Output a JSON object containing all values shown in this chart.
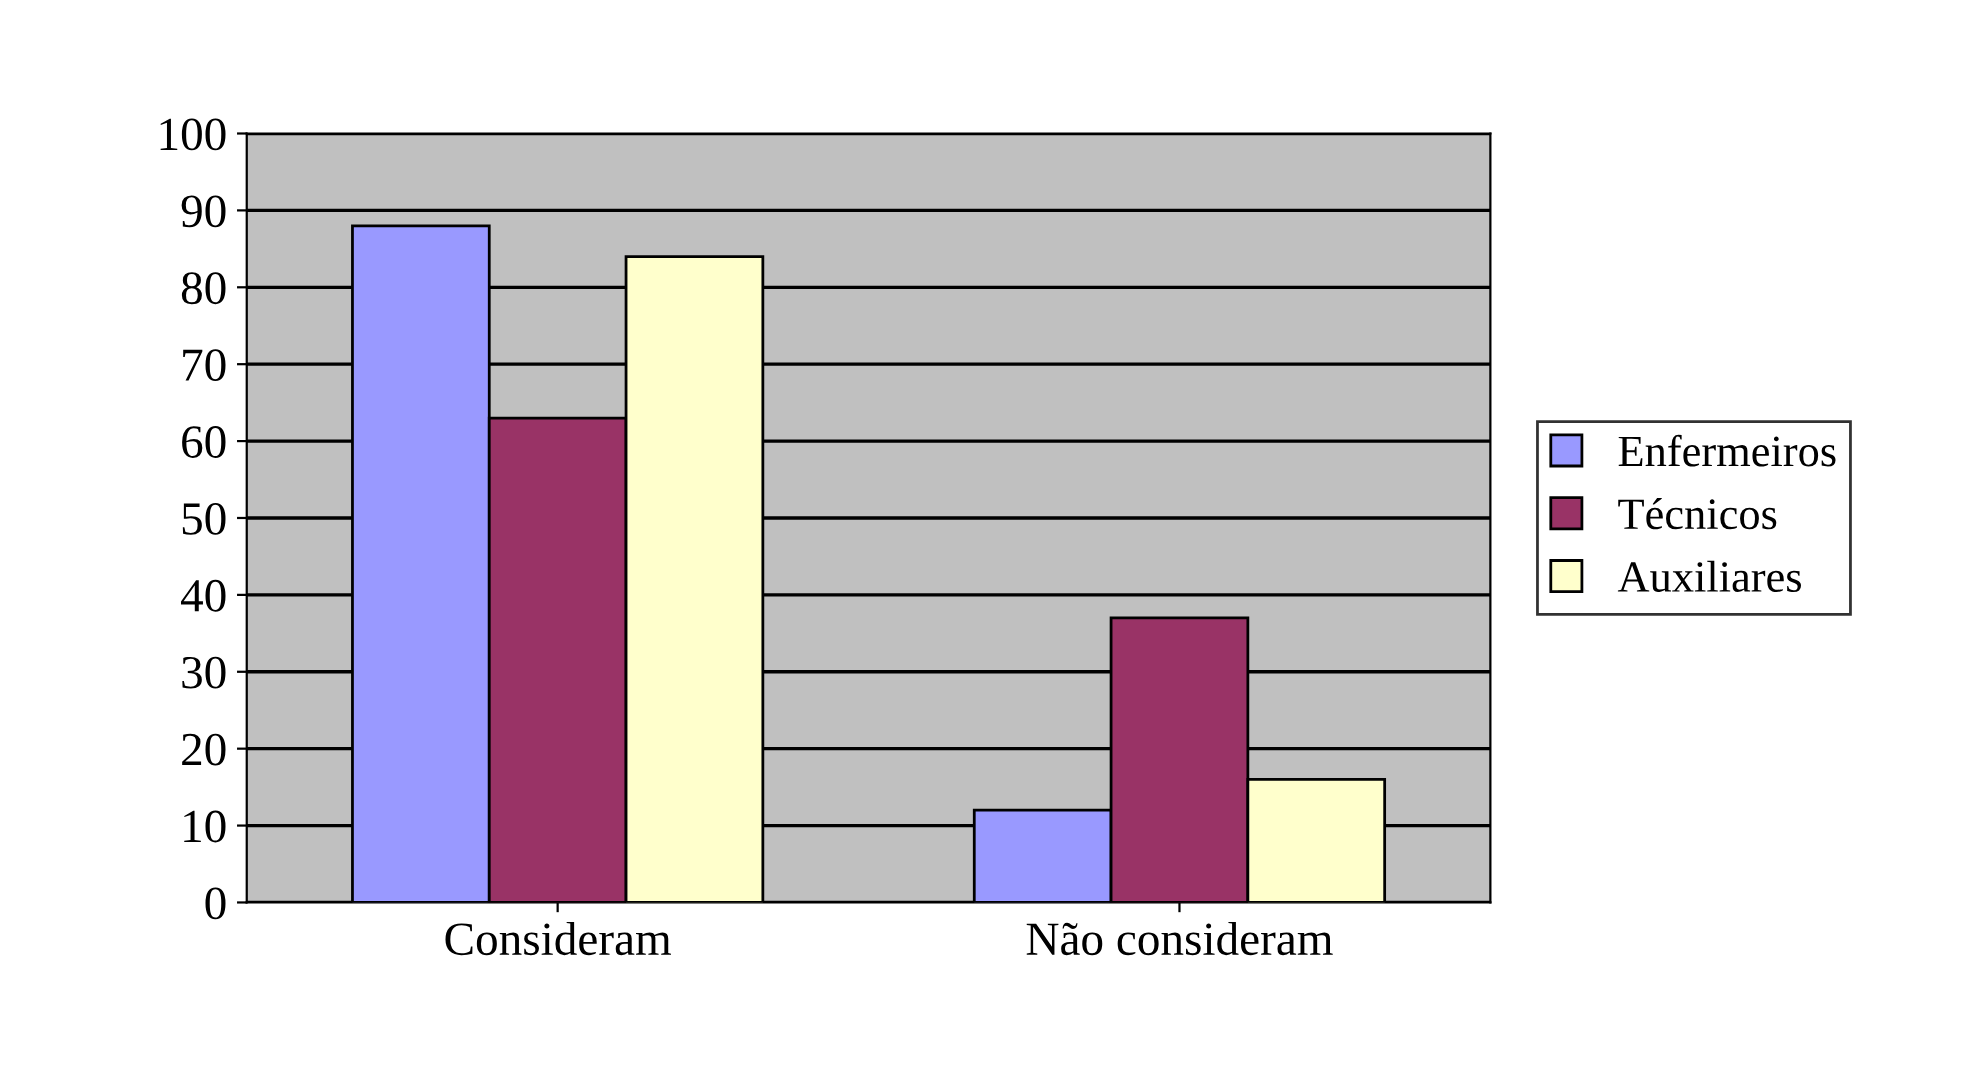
{
  "chart_data": {
    "type": "bar",
    "categories": [
      "Consideram",
      "Não consideram"
    ],
    "series": [
      {
        "name": "Enfermeiros",
        "color": "#9999ff",
        "values": [
          88,
          12
        ]
      },
      {
        "name": "Técnicos",
        "color": "#993366",
        "values": [
          63,
          37
        ]
      },
      {
        "name": "Auxiliares",
        "color": "#ffffcc",
        "values": [
          84,
          16
        ]
      }
    ],
    "ylim": [
      0,
      100
    ],
    "yticks": [
      0,
      10,
      20,
      30,
      40,
      50,
      60,
      70,
      80,
      90,
      100
    ],
    "grid": "y",
    "legend": "right"
  }
}
